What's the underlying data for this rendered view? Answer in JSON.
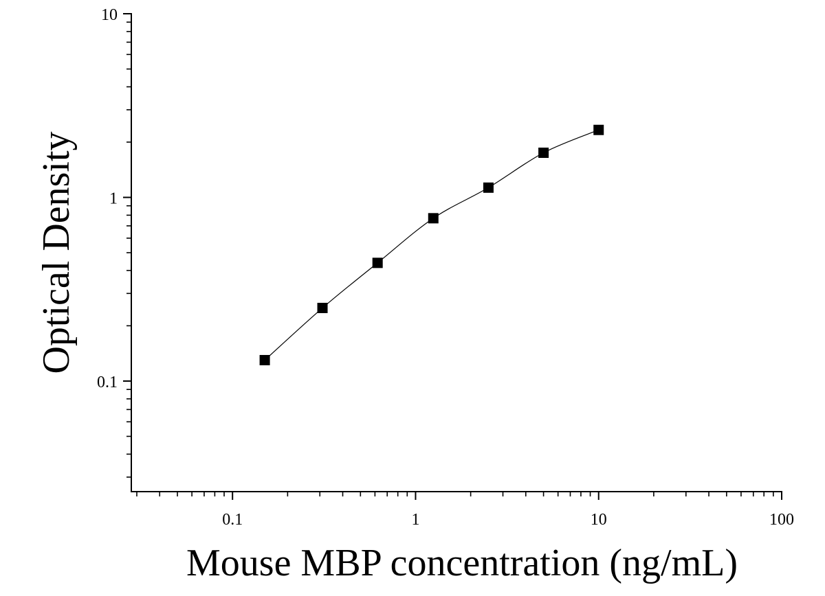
{
  "chart_data": {
    "type": "scatter",
    "title": "",
    "xlabel": "Mouse MBP concentration (ng/mL)",
    "ylabel": "Optical Density",
    "x_scale": "log",
    "y_scale": "log",
    "xlim": [
      0.028,
      100
    ],
    "ylim": [
      0.025,
      10
    ],
    "x_ticks": [
      {
        "value": 0.1,
        "label": "0.1"
      },
      {
        "value": 1,
        "label": "1"
      },
      {
        "value": 10,
        "label": "10"
      },
      {
        "value": 100,
        "label": "100"
      }
    ],
    "y_ticks": [
      {
        "value": 0.1,
        "label": "0.1"
      },
      {
        "value": 1,
        "label": "1"
      },
      {
        "value": 10,
        "label": "10"
      }
    ],
    "grid": false,
    "legend": "none",
    "marker": "square",
    "color": "#000000",
    "series": [
      {
        "x": [
          0.15,
          0.31,
          0.62,
          1.25,
          2.5,
          5,
          10
        ],
        "y": [
          0.13,
          0.25,
          0.44,
          0.77,
          1.13,
          1.75,
          2.33
        ],
        "fit_line": true
      }
    ]
  }
}
